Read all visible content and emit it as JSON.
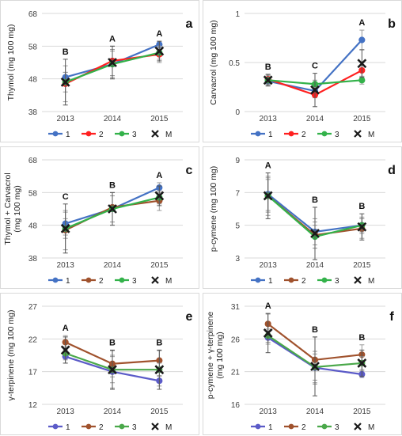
{
  "chart_data": [
    {
      "type": "line",
      "panel_letter": "a",
      "ylabel": "Thymol (mg 100 mg)",
      "categories": [
        "2013",
        "2014",
        "2015"
      ],
      "y_ticks": [
        "38",
        "48",
        "58",
        "68"
      ],
      "ylim": [
        38,
        68
      ],
      "series": [
        {
          "name": "1",
          "values": [
            48.5,
            52.5,
            58.5
          ],
          "err": [
            1.5,
            4.5,
            1.0
          ],
          "color": "#4472c4"
        },
        {
          "name": "2",
          "values": [
            46.5,
            53.5,
            55.5
          ],
          "err": [
            5.5,
            4.5,
            2.5
          ],
          "color": "#ff2020"
        },
        {
          "name": "3",
          "values": [
            47.0,
            52.5,
            56.0
          ],
          "err": [
            3.0,
            4.0,
            2.0
          ],
          "color": "#33b24a"
        },
        {
          "name": "M",
          "values": [
            47.0,
            53.0,
            56.5
          ],
          "err": [
            7.0,
            5.0,
            3.0
          ],
          "color": "#1a1a1a"
        }
      ],
      "group_letters": [
        "B",
        "A",
        "A"
      ],
      "legend_position": "bottom"
    },
    {
      "type": "line",
      "panel_letter": "b",
      "ylabel": "Carvacrol (mg 100 mg)",
      "categories": [
        "2013",
        "2014",
        "2015"
      ],
      "y_ticks": [
        "0",
        "0.5",
        "1"
      ],
      "ylim": [
        0,
        1
      ],
      "series": [
        {
          "name": "1",
          "values": [
            0.31,
            0.21,
            0.73
          ],
          "err": [
            0.03,
            0.05,
            0.1
          ],
          "color": "#4472c4"
        },
        {
          "name": "2",
          "values": [
            0.33,
            0.17,
            0.42
          ],
          "err": [
            0.04,
            0.03,
            0.08
          ],
          "color": "#ff2020"
        },
        {
          "name": "3",
          "values": [
            0.32,
            0.28,
            0.32
          ],
          "err": [
            0.05,
            0.04,
            0.04
          ],
          "color": "#33b24a"
        },
        {
          "name": "M",
          "values": [
            0.32,
            0.22,
            0.49
          ],
          "err": [
            0.06,
            0.17,
            0.14
          ],
          "color": "#1a1a1a"
        }
      ],
      "group_letters": [
        "B",
        "C",
        "A"
      ],
      "legend_position": "bottom"
    },
    {
      "type": "line",
      "panel_letter": "c",
      "ylabel": "Thymol + Carvacrol (mg 100 mg)",
      "categories": [
        "2013",
        "2014",
        "2015"
      ],
      "y_ticks": [
        "38",
        "48",
        "58",
        "68"
      ],
      "ylim": [
        38,
        68
      ],
      "series": [
        {
          "name": "1",
          "values": [
            48.5,
            53.0,
            59.5
          ],
          "err": [
            3.5,
            4.0,
            1.5
          ],
          "color": "#4472c4"
        },
        {
          "name": "2",
          "values": [
            46.5,
            53.5,
            55.5
          ],
          "err": [
            6.0,
            4.5,
            3.0
          ],
          "color": "#a0522d"
        },
        {
          "name": "3",
          "values": [
            47.0,
            53.0,
            56.5
          ],
          "err": [
            3.0,
            4.0,
            2.0
          ],
          "color": "#33b24a"
        },
        {
          "name": "M",
          "values": [
            47.0,
            53.0,
            57.0
          ],
          "err": [
            7.5,
            5.0,
            3.0
          ],
          "color": "#1a1a1a"
        }
      ],
      "group_letters": [
        "C",
        "B",
        "A"
      ],
      "legend_position": "bottom"
    },
    {
      "type": "line",
      "panel_letter": "d",
      "ylabel": "p-cymene (mg 100 mg)",
      "categories": [
        "2013",
        "2014",
        "2015"
      ],
      "y_ticks": [
        "3",
        "5",
        "7",
        "9"
      ],
      "ylim": [
        3,
        9
      ],
      "series": [
        {
          "name": "1",
          "values": [
            6.9,
            4.6,
            5.0
          ],
          "err": [
            1.0,
            0.8,
            0.4
          ],
          "color": "#4472c4"
        },
        {
          "name": "2",
          "values": [
            6.8,
            4.4,
            4.8
          ],
          "err": [
            1.2,
            0.8,
            0.6
          ],
          "color": "#a0522d"
        },
        {
          "name": "3",
          "values": [
            6.8,
            4.3,
            5.0
          ],
          "err": [
            1.0,
            0.7,
            0.5
          ],
          "color": "#33b24a"
        },
        {
          "name": "M",
          "values": [
            6.8,
            4.5,
            4.9
          ],
          "err": [
            1.4,
            1.6,
            0.8
          ],
          "color": "#1a1a1a"
        }
      ],
      "group_letters": [
        "A",
        "B",
        "B"
      ],
      "legend_position": "bottom"
    },
    {
      "type": "line",
      "panel_letter": "e",
      "ylabel": "γ-terpinene (mg 100 mg)",
      "categories": [
        "2013",
        "2014",
        "2015"
      ],
      "y_ticks": [
        "12",
        "17",
        "22",
        "27"
      ],
      "ylim": [
        12,
        27
      ],
      "series": [
        {
          "name": "1",
          "values": [
            19.3,
            17.0,
            15.6
          ],
          "err": [
            1.0,
            2.5,
            0.8
          ],
          "color": "#5b5bc8"
        },
        {
          "name": "2",
          "values": [
            21.5,
            18.2,
            18.7
          ],
          "err": [
            1.0,
            2.0,
            1.5
          ],
          "color": "#a0522d"
        },
        {
          "name": "3",
          "values": [
            19.8,
            17.3,
            17.3
          ],
          "err": [
            1.0,
            2.0,
            1.0
          ],
          "color": "#4aa84a"
        },
        {
          "name": "M",
          "values": [
            20.3,
            17.3,
            17.3
          ],
          "err": [
            2.0,
            3.0,
            3.0
          ],
          "color": "#1a1a1a"
        }
      ],
      "group_letters": [
        "A",
        "B",
        "B"
      ],
      "legend_position": "bottom"
    },
    {
      "type": "line",
      "panel_letter": "f",
      "ylabel": "p-cymene + γ-terpinene (mg 100 mg)",
      "categories": [
        "2013",
        "2014",
        "2015"
      ],
      "y_ticks": [
        "16",
        "21",
        "26",
        "31"
      ],
      "ylim": [
        16,
        31
      ],
      "series": [
        {
          "name": "1",
          "values": [
            26.2,
            21.6,
            20.6
          ],
          "err": [
            1.0,
            2.5,
            0.5
          ],
          "color": "#5b5bc8"
        },
        {
          "name": "2",
          "values": [
            28.3,
            22.8,
            23.6
          ],
          "err": [
            1.5,
            3.5,
            1.5
          ],
          "color": "#a0522d"
        },
        {
          "name": "3",
          "values": [
            26.5,
            21.7,
            22.3
          ],
          "err": [
            1.0,
            2.0,
            1.0
          ],
          "color": "#4aa84a"
        },
        {
          "name": "M",
          "values": [
            26.9,
            21.8,
            22.3
          ],
          "err": [
            3.0,
            4.5,
            2.0
          ],
          "color": "#1a1a1a"
        }
      ],
      "group_letters": [
        "A",
        "B",
        "B"
      ],
      "legend_position": "bottom"
    }
  ]
}
